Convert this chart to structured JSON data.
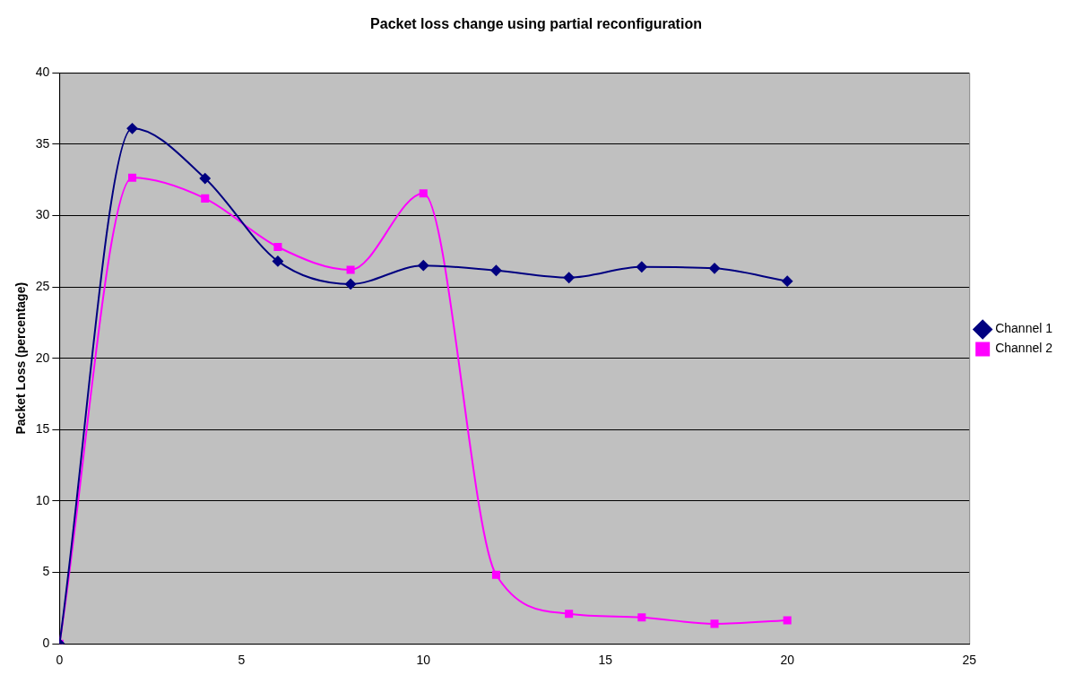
{
  "chart_data": {
    "type": "line",
    "title": "Packet loss change using partial reconfiguration",
    "ylabel": "Packet Loss (percentage)",
    "x": [
      0,
      2,
      4,
      6,
      8,
      10,
      12,
      14,
      16,
      18,
      20
    ],
    "series": [
      {
        "name": "Channel 1",
        "color": "#000080",
        "marker": "diamond",
        "values": [
          0,
          36.1,
          32.6,
          26.8,
          25.2,
          26.5,
          26.15,
          25.65,
          26.4,
          26.3,
          25.4
        ]
      },
      {
        "name": "Channel 2",
        "color": "#ff00ff",
        "marker": "square",
        "values": [
          0,
          32.65,
          31.2,
          27.8,
          26.2,
          31.55,
          4.83,
          2.1,
          1.85,
          1.4,
          1.65
        ]
      }
    ],
    "xlim": [
      0,
      25
    ],
    "xticks": [
      0,
      5,
      10,
      15,
      20,
      25
    ],
    "ylim": [
      0,
      40
    ],
    "yticks": [
      0,
      5,
      10,
      15,
      20,
      25,
      30,
      35,
      40
    ],
    "grid": "y",
    "legend": "right"
  }
}
